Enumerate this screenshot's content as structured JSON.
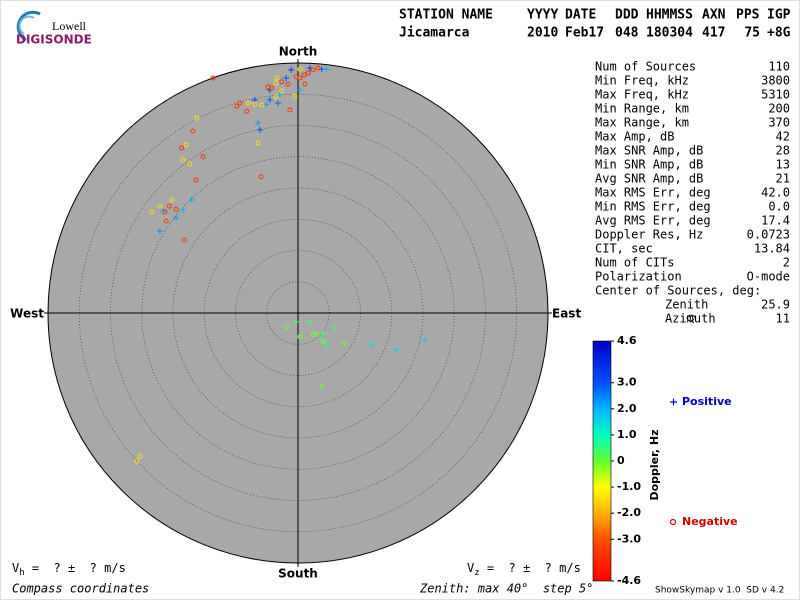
{
  "logo": {
    "line1": "Lowell",
    "line2": "DIGISONDE"
  },
  "header": {
    "columns": [
      "STATION NAME",
      "YYYY",
      "DATE",
      "DDD",
      "HHMMSS",
      "AXN",
      "PPS",
      "IGP"
    ],
    "values": [
      "Jicamarca",
      "2010",
      "Feb17",
      "048",
      "180304",
      "417",
      "75",
      "+8G"
    ]
  },
  "stats": [
    {
      "label": "Num of Sources",
      "value": "110"
    },
    {
      "label": "Min Freq, kHz",
      "value": "3800"
    },
    {
      "label": "Max Freq, kHz",
      "value": "5310"
    },
    {
      "label": "Min Range, km",
      "value": "200"
    },
    {
      "label": "Max Range, km",
      "value": "370"
    },
    {
      "label": "Max Amp, dB",
      "value": "42"
    },
    {
      "label": "Max SNR Amp, dB",
      "value": "28"
    },
    {
      "label": "Min SNR Amp, dB",
      "value": "13"
    },
    {
      "label": "Avg SNR Amp, dB",
      "value": "21"
    },
    {
      "label": "Max RMS Err, deg",
      "value": "42.0"
    },
    {
      "label": "Min RMS Err, deg",
      "value": "0.0"
    },
    {
      "label": "Avg RMS Err, deg",
      "value": "17.4"
    },
    {
      "label": "Doppler Res, Hz",
      "value": "0.0723"
    },
    {
      "label": "CIT, sec",
      "value": "13.84"
    },
    {
      "label": "Num of CITs",
      "value": "2"
    },
    {
      "label": "Polarization",
      "value": "O-mode"
    }
  ],
  "center_of_sources": {
    "label": "Center of Sources, deg:",
    "items": [
      {
        "label": "Zenith",
        "value": "25.9"
      },
      {
        "label": "Azimuth",
        "value": "11"
      }
    ]
  },
  "footer": {
    "vh": {
      "symbol": "V",
      "sub": "h",
      "text": " =  ? ±  ? m/s"
    },
    "vz": {
      "symbol": "V",
      "sub": "z",
      "text": " =  ? ±  ? m/s"
    },
    "coordinates": "Compass coordinates",
    "zenith_note": "Zenith: max 40°  step 5°",
    "version": "ShowSkymap v 1.0  SD v 4.2"
  },
  "chart_data": {
    "type": "skymap",
    "directions": {
      "north": "North",
      "south": "South",
      "east": "East",
      "west": "West"
    },
    "rlim": [
      0,
      40
    ],
    "rticks": [
      5,
      10,
      15,
      20,
      25,
      30,
      35,
      40
    ],
    "colorbar": {
      "title": "Doppler, Hz",
      "lim": [
        -4.6,
        4.6
      ],
      "ticks": [
        4.6,
        {
          "value": 3,
          "label": "3.0"
        },
        {
          "value": 2,
          "label": "2.0"
        },
        {
          "value": 1,
          "label": "1.0"
        },
        0,
        {
          "value": -1,
          "label": "-1.0"
        },
        {
          "value": -2,
          "label": "-2.0"
        },
        {
          "value": -3,
          "label": "-3.0"
        },
        -4.6
      ],
      "colors": [
        "#0000c8",
        "#0050ff",
        "#00b4ff",
        "#00ffc0",
        "#60ff30",
        "#ffff00",
        "#ffb000",
        "#ff5000",
        "#ff0000"
      ]
    },
    "series": [
      {
        "name": "Positive",
        "color": "#0000c0",
        "marker": "plus",
        "x": [
          -1.1,
          -1.9,
          -4.5,
          -4.5,
          -2.9,
          -6.9,
          -3.2,
          -5.1,
          -6.4,
          -6.1,
          1.9,
          3.8,
          4.5,
          0.3,
          -17.0,
          -18.4,
          -19.5,
          -21.6,
          -22.1,
          1.9,
          4.0,
          5.9,
          4.6,
          3.7,
          11.8,
          15.7,
          20.3,
          -0.3
        ],
        "y": [
          38.9,
          37.6,
          35.7,
          34.1,
          34.9,
          34.1,
          33.6,
          33.4,
          30.4,
          29.3,
          39.2,
          39.0,
          39.0,
          35.7,
          18.1,
          16.5,
          15.2,
          16.3,
          13.1,
          -1.4,
          -3.2,
          -2.4,
          -5.3,
          -4.3,
          -5.1,
          -5.9,
          -4.3,
          -1.4
        ],
        "doppler": [
          3.4,
          3.0,
          3.2,
          3.0,
          2.0,
          3.1,
          2.8,
          2.2,
          2.3,
          2.9,
          3.3,
          3.0,
          2.0,
          1.9,
          2.1,
          2.0,
          2.2,
          2.0,
          2.3,
          0.4,
          0.5,
          0.3,
          0.6,
          0.4,
          1.4,
          1.5,
          1.6,
          0.3
        ]
      },
      {
        "name": "Negative",
        "color": "#d00000",
        "marker": "circle",
        "x": [
          -13.6,
          -16.2,
          -16.8,
          -17.9,
          -18.6,
          -18.4,
          -15.2,
          -17.3,
          -16.3,
          -5.9,
          -20.2,
          -20.6,
          -21.3,
          -23.4,
          -21.1,
          -18.2,
          -19.5,
          -22.1,
          -6.4,
          -9.3,
          -9.8,
          -8.0,
          -6.9,
          -5.8,
          -8.2,
          -3.5,
          -4.2,
          -4.8,
          -3.5,
          -3.4,
          -2.6,
          -1.6,
          -0.5,
          0.3,
          0.3,
          1.0,
          1.6,
          2.4,
          1.1,
          -1.3,
          -0.3,
          3.2,
          -2.6,
          -25.3,
          -25.8,
          3.8,
          -1.8,
          0.3,
          2.4,
          3.0,
          7.4,
          4.2
        ],
        "y": [
          37.6,
          31.2,
          29.1,
          26.9,
          26.4,
          24.5,
          25.0,
          23.8,
          21.3,
          21.8,
          18.1,
          17.1,
          16.2,
          16.2,
          14.7,
          11.7,
          16.6,
          17.1,
          27.2,
          33.6,
          33.1,
          33.6,
          33.4,
          33.3,
          32.3,
          34.6,
          36.0,
          36.2,
          36.8,
          37.6,
          37.0,
          36.6,
          34.7,
          39.0,
          37.6,
          38.1,
          38.4,
          38.9,
          36.6,
          32.5,
          37.8,
          39.2,
          35.5,
          -22.9,
          -23.7,
          -11.7,
          -2.2,
          -3.8,
          -3.4,
          -3.4,
          -4.8,
          -4.6
        ],
        "doppler": [
          -3.6,
          -1.4,
          -3.6,
          -1.4,
          -3.6,
          -1.4,
          -3.6,
          -1.4,
          -3.6,
          -3.6,
          -1.4,
          -3.6,
          -3.6,
          -1.4,
          -3.6,
          -3.6,
          -3.6,
          -1.4,
          -1.4,
          -3.6,
          -3.6,
          -1.4,
          -1.4,
          -1.4,
          -3.6,
          -1.4,
          -3.6,
          -3.6,
          -1.4,
          -1.4,
          -3.6,
          -3.6,
          -1.4,
          -1.4,
          -3.6,
          -3.6,
          -3.6,
          -3.6,
          -3.6,
          -3.6,
          -3.6,
          -3.6,
          -1.4,
          -1.4,
          -1.4,
          -0.1,
          -0.1,
          -0.1,
          -0.1,
          -0.1,
          -0.1,
          -0.1
        ]
      }
    ]
  }
}
